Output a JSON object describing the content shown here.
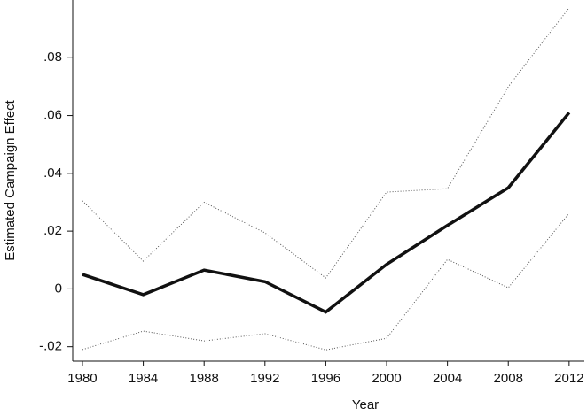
{
  "chart_data": {
    "type": "line",
    "x_label": "Year",
    "y_label": "Estimated Campaign Effect",
    "x": [
      1980,
      1984,
      1988,
      1992,
      1996,
      2000,
      2004,
      2008,
      2012
    ],
    "series": [
      {
        "color": "#111111",
        "line_style": "solid",
        "line_width": 3.5,
        "values": [
          0.005,
          -0.002,
          0.0065,
          0.0025,
          -0.008,
          0.0085,
          0.022,
          0.035,
          0.061
        ]
      },
      {
        "color": "#555555",
        "line_style": "dotted",
        "line_width": 1,
        "values": [
          0.0305,
          0.0096,
          0.03,
          0.0194,
          0.0038,
          0.0335,
          0.0347,
          0.07,
          0.0973
        ]
      },
      {
        "color": "#555555",
        "line_style": "dotted",
        "line_width": 1,
        "values": [
          -0.021,
          -0.0146,
          -0.018,
          -0.0155,
          -0.0211,
          -0.0171,
          0.0102,
          0.0004,
          0.0262
        ]
      }
    ],
    "xlim": [
      1979.36,
      2013
    ],
    "ylim": [
      -0.025,
      0.1
    ],
    "xticks": [
      1980,
      1984,
      1988,
      1992,
      1996,
      2000,
      2004,
      2008,
      2012
    ],
    "yticks": [
      {
        "value": -0.02,
        "label": "-.02"
      },
      0,
      {
        "value": 0.02,
        "label": ".02"
      },
      {
        "value": 0.04,
        "label": ".04"
      },
      {
        "value": 0.06,
        "label": ".06"
      },
      {
        "value": 0.08,
        "label": ".08"
      }
    ],
    "grid": false
  }
}
